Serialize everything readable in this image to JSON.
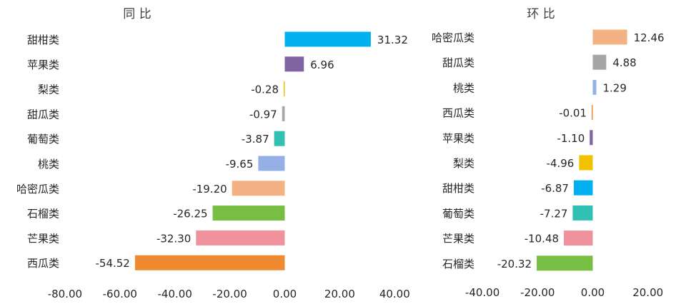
{
  "chart_data": [
    {
      "type": "bar",
      "orientation": "horizontal",
      "title": "同 比",
      "xlim": [
        -80,
        40
      ],
      "xticks": [
        "-80.00",
        "-60.00",
        "-40.00",
        "-20.00",
        "0.00",
        "20.00",
        "40.00"
      ],
      "grid": false,
      "categories": [
        "甜柑类",
        "苹果类",
        "梨类",
        "甜瓜类",
        "葡萄类",
        "桃类",
        "哈密瓜类",
        "石榴类",
        "芒果类",
        "西瓜类"
      ],
      "values": [
        31.32,
        6.96,
        -0.28,
        -0.97,
        -3.87,
        -9.65,
        -19.2,
        -26.25,
        -32.3,
        -54.52
      ],
      "labels": [
        "31.32",
        "6.96",
        "-0.28",
        "-0.97",
        "-3.87",
        "-9.65",
        "-19.20",
        "-26.25",
        "-32.30",
        "-54.52"
      ],
      "colors": [
        "#00B0F0",
        "#8064A2",
        "#F2C200",
        "#A6A6A6",
        "#30C0B4",
        "#95B0E4",
        "#F4B183",
        "#77BE43",
        "#F0929C",
        "#F08A30"
      ]
    },
    {
      "type": "bar",
      "orientation": "horizontal",
      "title": "环 比",
      "xlim": [
        -40,
        20
      ],
      "xticks": [
        "-40.00",
        "-20.00",
        "0.00",
        "20.00"
      ],
      "grid": false,
      "categories": [
        "哈密瓜类",
        "甜瓜类",
        "桃类",
        "西瓜类",
        "苹果类",
        "梨类",
        "甜柑类",
        "葡萄类",
        "芒果类",
        "石榴类"
      ],
      "values": [
        12.46,
        4.88,
        1.29,
        -0.01,
        -1.1,
        -4.96,
        -6.87,
        -7.27,
        -10.48,
        -20.32
      ],
      "labels": [
        "12.46",
        "4.88",
        "1.29",
        "-0.01",
        "-1.10",
        "-4.96",
        "-6.87",
        "-7.27",
        "-10.48",
        "-20.32"
      ],
      "colors": [
        "#F4B183",
        "#A6A6A6",
        "#95B0E4",
        "#F08A30",
        "#8064A2",
        "#F2C200",
        "#00B0F0",
        "#30C0B4",
        "#F0929C",
        "#77BE43"
      ]
    }
  ]
}
